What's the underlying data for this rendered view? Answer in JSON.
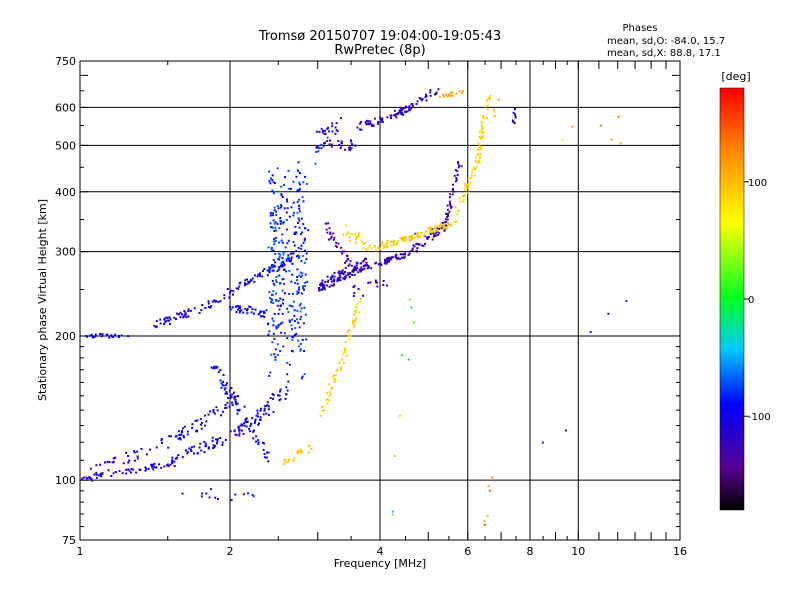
{
  "chart_data": {
    "type": "scatter",
    "title": "Tromsø 20150707 19:04:00-19:05:43",
    "subtitle": "RwPretec (8p)",
    "xlabel": "Frequency [MHz]",
    "ylabel": "Stationary phase Virtual Height [km]",
    "x_scale": "log",
    "y_scale": "log",
    "xlim": [
      1,
      16
    ],
    "ylim": [
      75,
      750
    ],
    "x_ticks": [
      1,
      2,
      4,
      6,
      8,
      10,
      16
    ],
    "x_ticklabels": [
      "1",
      "2",
      "4",
      "6",
      "8",
      "10",
      "16"
    ],
    "x_gridlines": [
      2,
      4,
      6,
      8,
      10
    ],
    "y_ticks": [
      75,
      100,
      200,
      300,
      400,
      500,
      600,
      750
    ],
    "y_ticklabels": [
      "75",
      "100",
      "200",
      "300",
      "400",
      "500",
      "600",
      "750"
    ],
    "y_gridlines": [
      100,
      200,
      300,
      400,
      500,
      600
    ],
    "grid": true,
    "stats": {
      "heading": "Phases",
      "line_o": "mean, sd,O:  -84.0, 15.7",
      "line_x": "mean, sd,X:  88.8, 17.1"
    },
    "colorbar": {
      "label": "[deg]",
      "range": [
        -180,
        180
      ],
      "ticks": [
        100,
        0,
        -100
      ],
      "ticklabels": [
        "100",
        "0",
        "-100"
      ]
    },
    "series": [
      {
        "segments": [
          {
            "x0": 1.0,
            "x1": 1.25,
            "y0": 200,
            "y1": 200,
            "n": 25,
            "jitter": 0.01,
            "phase": -95,
            "pjit": 10
          },
          {
            "x0": 1.4,
            "x1": 1.75,
            "y0": 210,
            "y1": 228,
            "n": 40,
            "jitter": 0.02,
            "phase": -105,
            "pjit": 10
          },
          {
            "x0": 1.75,
            "x1": 2.3,
            "y0": 228,
            "y1": 268,
            "n": 45,
            "jitter": 0.02,
            "phase": -100,
            "pjit": 10
          },
          {
            "x0": 2.3,
            "x1": 2.75,
            "y0": 268,
            "y1": 300,
            "n": 35,
            "jitter": 0.02,
            "phase": -100,
            "pjit": 10
          },
          {
            "x0": 2.0,
            "x1": 2.35,
            "y0": 230,
            "y1": 222,
            "n": 40,
            "jitter": 0.02,
            "phase": -92,
            "pjit": 10
          },
          {
            "x0": 2.4,
            "x1": 2.85,
            "y0": 180,
            "y1": 415,
            "n": 320,
            "jitter": 0.14,
            "phase": -80,
            "pjit": 16,
            "xspread": true
          },
          {
            "x0": 1.0,
            "x1": 1.5,
            "y0": 100,
            "y1": 108,
            "n": 50,
            "jitter": 0.015,
            "phase": -105,
            "pjit": 10
          },
          {
            "x0": 1.5,
            "x1": 2.2,
            "y0": 108,
            "y1": 130,
            "n": 70,
            "jitter": 0.03,
            "phase": -100,
            "pjit": 10
          },
          {
            "x0": 2.2,
            "x1": 2.6,
            "y0": 130,
            "y1": 155,
            "n": 45,
            "jitter": 0.04,
            "phase": -95,
            "pjit": 12
          },
          {
            "x0": 1.05,
            "x1": 1.55,
            "y0": 103,
            "y1": 122,
            "n": 35,
            "jitter": 0.03,
            "phase": -100,
            "pjit": 10
          },
          {
            "x0": 1.55,
            "x1": 2.1,
            "y0": 122,
            "y1": 148,
            "n": 50,
            "jitter": 0.03,
            "phase": -98,
            "pjit": 10
          },
          {
            "x0": 1.85,
            "x1": 2.05,
            "y0": 175,
            "y1": 145,
            "n": 35,
            "jitter": 0.04,
            "phase": -95,
            "pjit": 10
          },
          {
            "x0": 2.05,
            "x1": 2.4,
            "y0": 145,
            "y1": 112,
            "n": 30,
            "jitter": 0.04,
            "phase": -95,
            "pjit": 10
          },
          {
            "x0": 3.0,
            "x1": 3.6,
            "y0": 250,
            "y1": 275,
            "n": 60,
            "jitter": 0.02,
            "phase": -120,
            "pjit": 8
          },
          {
            "x0": 3.6,
            "x1": 4.5,
            "y0": 275,
            "y1": 295,
            "n": 60,
            "jitter": 0.015,
            "phase": -122,
            "pjit": 8
          },
          {
            "x0": 4.5,
            "x1": 5.4,
            "y0": 295,
            "y1": 340,
            "n": 50,
            "jitter": 0.02,
            "phase": -122,
            "pjit": 8
          },
          {
            "x0": 5.4,
            "x1": 5.8,
            "y0": 340,
            "y1": 465,
            "n": 40,
            "jitter": 0.02,
            "phase": -125,
            "pjit": 8
          },
          {
            "x0": 3.0,
            "x1": 3.8,
            "y0": 255,
            "y1": 290,
            "n": 40,
            "jitter": 0.02,
            "phase": -118,
            "pjit": 8
          },
          {
            "x0": 3.1,
            "x1": 3.5,
            "y0": 340,
            "y1": 280,
            "n": 30,
            "jitter": 0.03,
            "phase": -128,
            "pjit": 8
          },
          {
            "x0": 3.5,
            "x1": 4.2,
            "y0": 245,
            "y1": 260,
            "n": 15,
            "jitter": 0.03,
            "phase": -115,
            "pjit": 8
          },
          {
            "x0": 3.35,
            "x1": 3.85,
            "y0": 335,
            "y1": 305,
            "n": 25,
            "jitter": 0.03,
            "phase": 88,
            "pjit": 10
          },
          {
            "x0": 3.85,
            "x1": 4.6,
            "y0": 305,
            "y1": 320,
            "n": 40,
            "jitter": 0.015,
            "phase": 95,
            "pjit": 8
          },
          {
            "x0": 4.6,
            "x1": 5.6,
            "y0": 320,
            "y1": 345,
            "n": 50,
            "jitter": 0.015,
            "phase": 92,
            "pjit": 8
          },
          {
            "x0": 5.6,
            "x1": 6.3,
            "y0": 345,
            "y1": 470,
            "n": 40,
            "jitter": 0.02,
            "phase": 90,
            "pjit": 8
          },
          {
            "x0": 6.3,
            "x1": 6.6,
            "y0": 470,
            "y1": 640,
            "n": 45,
            "jitter": 0.025,
            "phase": 88,
            "pjit": 8
          },
          {
            "x0": 3.0,
            "x1": 3.6,
            "y0": 500,
            "y1": 500,
            "n": 30,
            "jitter": 0.025,
            "phase": -118,
            "pjit": 8
          },
          {
            "x0": 3.6,
            "x1": 4.5,
            "y0": 545,
            "y1": 590,
            "n": 55,
            "jitter": 0.02,
            "phase": -118,
            "pjit": 8
          },
          {
            "x0": 4.5,
            "x1": 5.2,
            "y0": 590,
            "y1": 655,
            "n": 30,
            "jitter": 0.015,
            "phase": -115,
            "pjit": 8
          },
          {
            "x0": 3.0,
            "x1": 3.4,
            "y0": 520,
            "y1": 560,
            "n": 18,
            "jitter": 0.03,
            "phase": -105,
            "pjit": 10
          },
          {
            "x0": 2.95,
            "x1": 3.2,
            "y0": 460,
            "y1": 540,
            "n": 10,
            "jitter": 0.03,
            "phase": -75,
            "pjit": 8
          },
          {
            "x0": 3.45,
            "x1": 3.65,
            "y0": 195,
            "y1": 240,
            "n": 25,
            "jitter": 0.025,
            "phase": 90,
            "pjit": 8
          },
          {
            "x0": 3.05,
            "x1": 3.45,
            "y0": 135,
            "y1": 195,
            "n": 35,
            "jitter": 0.03,
            "phase": 92,
            "pjit": 8
          },
          {
            "x0": 2.55,
            "x1": 2.9,
            "y0": 108,
            "y1": 117,
            "n": 20,
            "jitter": 0.02,
            "phase": 95,
            "pjit": 8
          },
          {
            "x0": 5.3,
            "x1": 6.0,
            "y0": 630,
            "y1": 655,
            "n": 18,
            "jitter": 0.01,
            "phase": 115,
            "pjit": 10
          },
          {
            "x0": 7.45,
            "x1": 7.5,
            "y0": 560,
            "y1": 630,
            "n": 10,
            "jitter": 0.03,
            "phase": -118,
            "pjit": 6
          },
          {
            "x0": 6.8,
            "x1": 6.9,
            "y0": 560,
            "y1": 640,
            "n": 6,
            "jitter": 0.03,
            "phase": 95,
            "pjit": 6
          },
          {
            "x0": 1.6,
            "x1": 2.3,
            "y0": 95,
            "y1": 92,
            "n": 14,
            "jitter": 0.03,
            "phase": -100,
            "pjit": 40
          },
          {
            "x0": 4.2,
            "x1": 4.7,
            "y0": 100,
            "y1": 270,
            "n": 10,
            "jitter": 0.25,
            "phase": 10,
            "pjit": 90
          },
          {
            "x0": 9.0,
            "x1": 14.0,
            "y0": 490,
            "y1": 560,
            "n": 6,
            "jitter": 0.1,
            "phase": 100,
            "pjit": 40
          },
          {
            "x0": 8.5,
            "x1": 13.0,
            "y0": 105,
            "y1": 310,
            "n": 5,
            "jitter": 0.2,
            "phase": -120,
            "pjit": 40
          },
          {
            "x0": 6.4,
            "x1": 7.6,
            "y0": 80,
            "y1": 200,
            "n": 6,
            "jitter": 0.2,
            "phase": 140,
            "pjit": 40
          }
        ]
      }
    ]
  }
}
